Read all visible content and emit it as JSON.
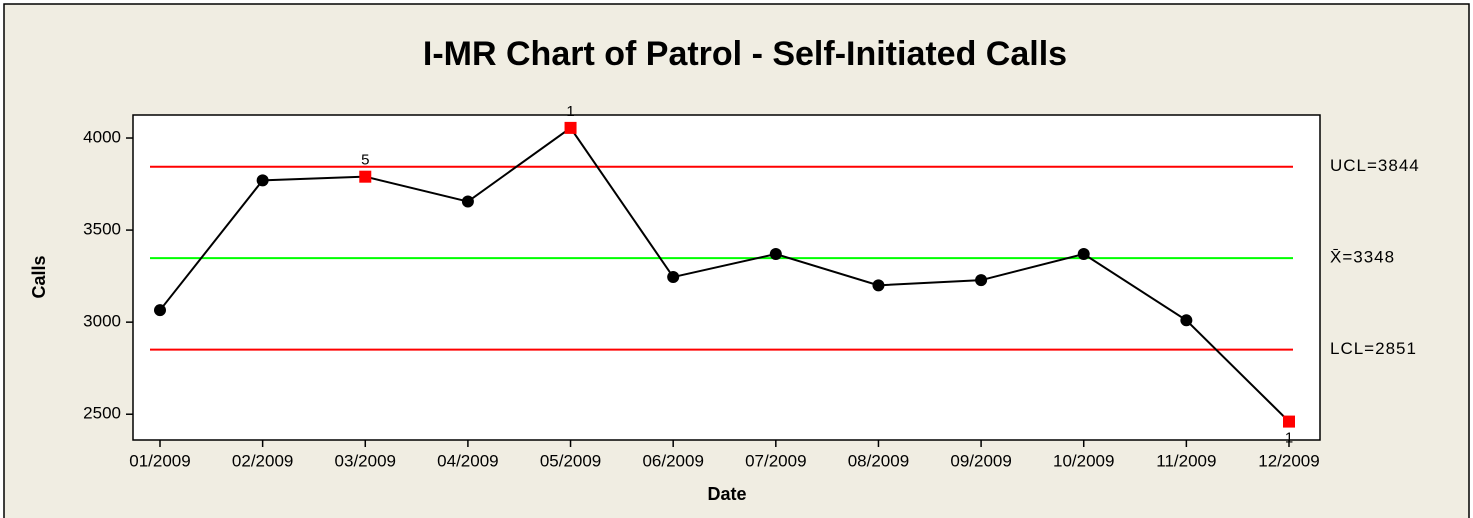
{
  "chart_data": {
    "type": "line",
    "title": "I-MR Chart of Patrol - Self-Initiated Calls",
    "x_label": "Date",
    "y_label": "Calls",
    "categories": [
      "01/2009",
      "02/2009",
      "03/2009",
      "04/2009",
      "05/2009",
      "06/2009",
      "07/2009",
      "08/2009",
      "09/2009",
      "10/2009",
      "11/2009",
      "12/2009"
    ],
    "series": [
      {
        "name": "Calls",
        "color": "#000000",
        "values": [
          3065,
          3770,
          3790,
          3655,
          4055,
          3245,
          3370,
          3200,
          3228,
          3370,
          3010,
          2460
        ]
      }
    ],
    "point_labels": [
      null,
      null,
      "5",
      null,
      "1",
      null,
      null,
      null,
      null,
      null,
      null,
      "1"
    ],
    "flag_color": "#ff0000",
    "control_lines": [
      {
        "label": "UCL=3844",
        "value": 3844,
        "color": "#ff0000"
      },
      {
        "label": "X̄=3348",
        "value": 3348,
        "color": "#00ff00"
      },
      {
        "label": "LCL=2851",
        "value": 2851,
        "color": "#ff0000"
      }
    ],
    "ylim": [
      2360,
      4125
    ],
    "yticks": [
      2500,
      3000,
      3500,
      4000
    ]
  }
}
